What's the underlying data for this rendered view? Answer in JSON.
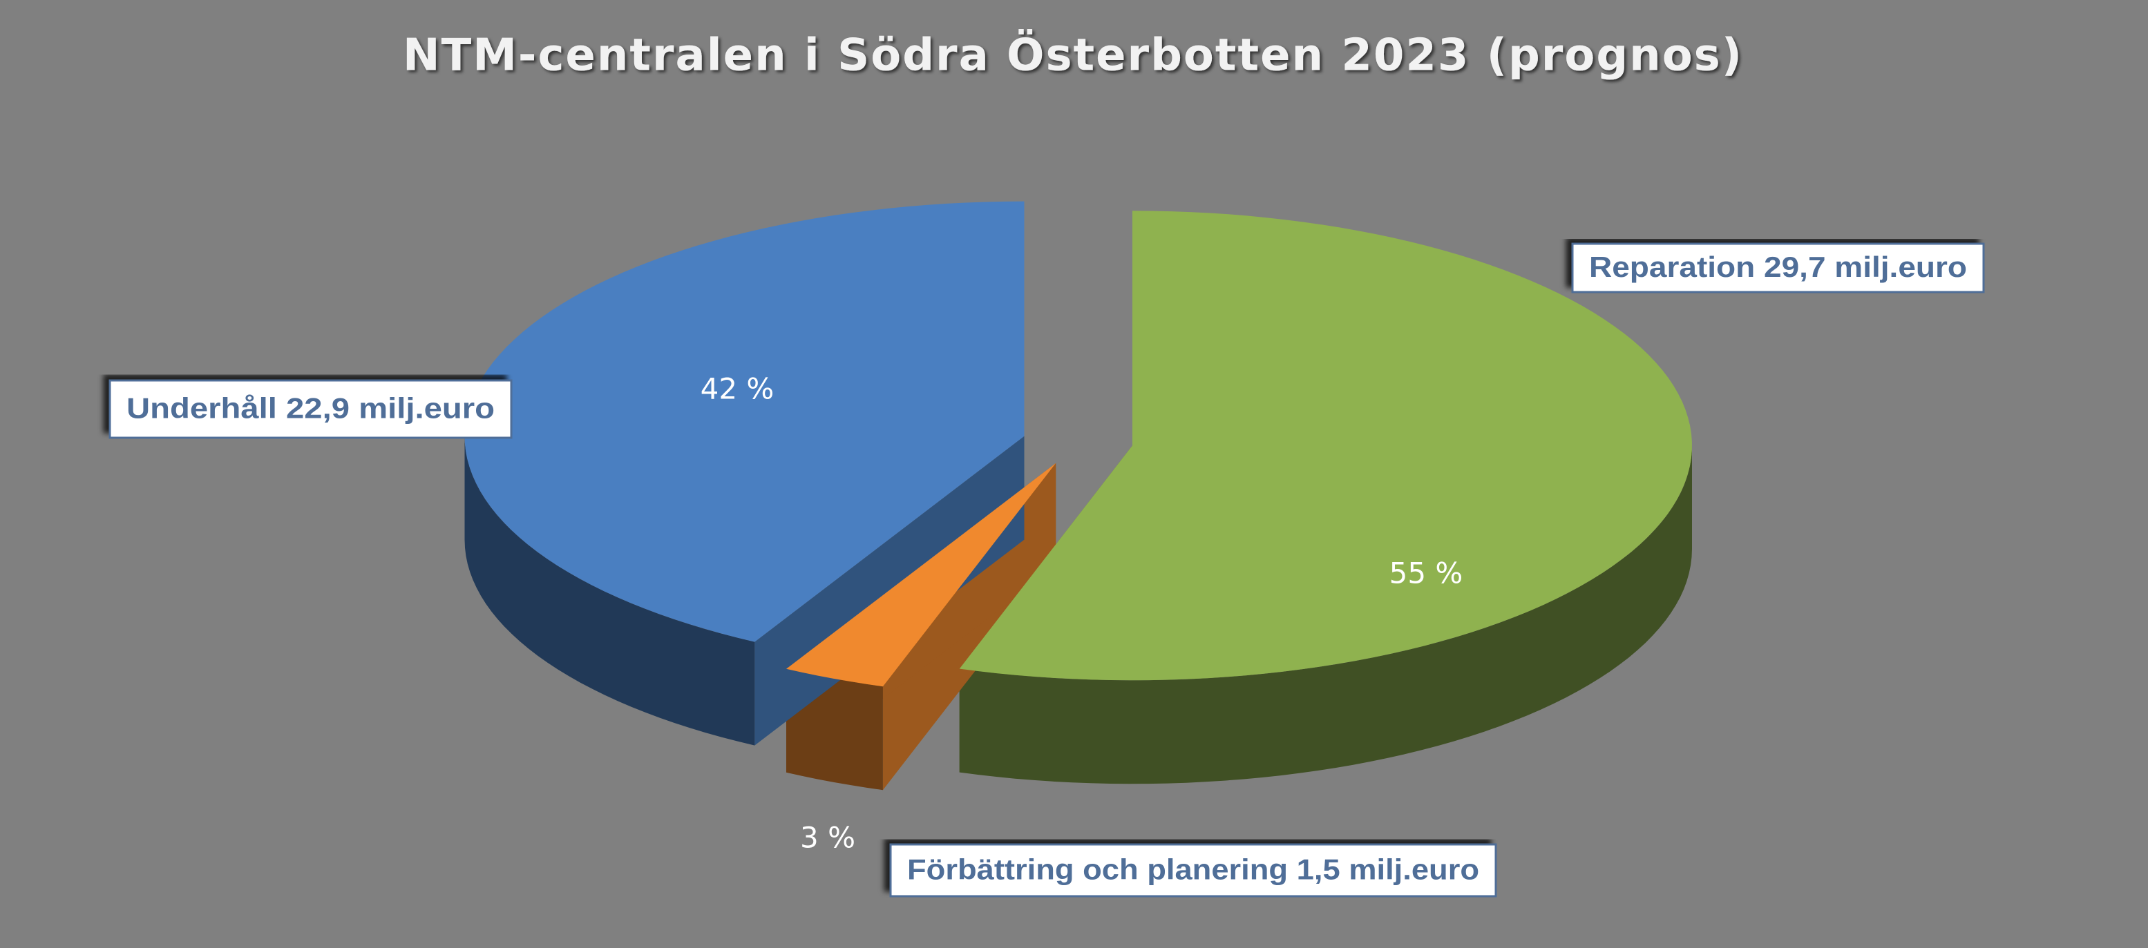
{
  "chart_data": {
    "type": "pie",
    "title": "NTM-centralen i Södra Österbotten 2023 (prognos)",
    "categories": [
      "Reparation 29,7 milj.euro",
      "Förbättring och planering 1,5 milj.euro",
      "Underhåll 22,9 milj.euro"
    ],
    "values": [
      55,
      3,
      42
    ],
    "value_labels": [
      "55 %",
      "3 %",
      "42 %"
    ],
    "colors": [
      "#8fb24f",
      "#f0892e",
      "#4a7fc1"
    ]
  }
}
